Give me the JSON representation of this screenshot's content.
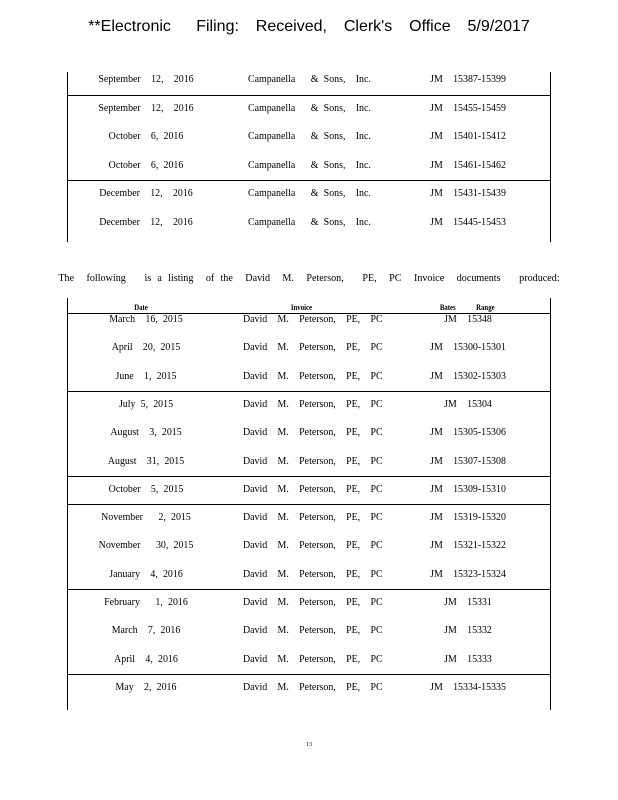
{
  "header": {
    "stamp": "**Electronic   Filing:  Received,  Clerk's  Office  5/9/2017"
  },
  "table1": {
    "rows": [
      {
        "date": "September  12,  2016",
        "invoice": "Campanella   & Sons,  Inc.",
        "bates": "JM  15387-15399"
      },
      {
        "date": "September  12,  2016",
        "invoice": "Campanella   & Sons,  Inc.",
        "bates": "JM  15455-15459"
      },
      {
        "date": "October  6, 2016",
        "invoice": "Campanella   & Sons,  Inc.",
        "bates": "JM  15401-15412"
      },
      {
        "date": "October  6, 2016",
        "invoice": "Campanella   & Sons,  Inc.",
        "bates": "JM  15461-15462"
      },
      {
        "date": "December  12,  2016",
        "invoice": "Campanella   & Sons,  Inc.",
        "bates": "JM  15431-15439"
      },
      {
        "date": "December  12,  2016",
        "invoice": "Campanella   & Sons,  Inc.",
        "bates": "JM  15445-15453"
      }
    ]
  },
  "intro": "The  following   is a listing  of the  David  M.  Peterson,   PE,  PC  Invoice  documents   produced:",
  "table2": {
    "headers": {
      "date": "Date",
      "invoice": "Invoice",
      "bates": "Bates   Range"
    },
    "rows": [
      {
        "date": "March  16, 2015",
        "invoice": "David  M.  Peterson,  PE,  PC",
        "bates": "JM  15348"
      },
      {
        "date": "April  20, 2015",
        "invoice": "David  M.  Peterson,  PE,  PC",
        "bates": "JM  15300-15301"
      },
      {
        "date": "June  1, 2015",
        "invoice": "David  M.  Peterson,  PE,  PC",
        "bates": "JM  15302-15303"
      },
      {
        "date": "July 5, 2015",
        "invoice": "David  M.  Peterson,  PE,  PC",
        "bates": "JM  15304"
      },
      {
        "date": "August  3, 2015",
        "invoice": "David  M.  Peterson,  PE,  PC",
        "bates": "JM  15305-15306"
      },
      {
        "date": "August  31, 2015",
        "invoice": "David  M.  Peterson,  PE,  PC",
        "bates": "JM  15307-15308"
      },
      {
        "date": "October  5, 2015",
        "invoice": "David  M.  Peterson,  PE,  PC",
        "bates": "JM  15309-15310"
      },
      {
        "date": "November   2, 2015",
        "invoice": "David  M.  Peterson,  PE,  PC",
        "bates": "JM  15319-15320"
      },
      {
        "date": "November   30, 2015",
        "invoice": "David  M.  Peterson,  PE,  PC",
        "bates": "JM  15321-15322"
      },
      {
        "date": "January  4, 2016",
        "invoice": "David  M.  Peterson,  PE,  PC",
        "bates": "JM  15323-15324"
      },
      {
        "date": "February   1, 2016",
        "invoice": "David  M.  Peterson,  PE,  PC",
        "bates": "JM  15331"
      },
      {
        "date": "March  7, 2016",
        "invoice": "David  M.  Peterson,  PE,  PC",
        "bates": "JM  15332"
      },
      {
        "date": "April  4, 2016",
        "invoice": "David  M.  Peterson,  PE,  PC",
        "bates": "JM  15333"
      },
      {
        "date": "May  2, 2016",
        "invoice": "David  M.  Peterson,  PE,  PC",
        "bates": "JM  15334-15335"
      }
    ]
  },
  "page_number": "13"
}
